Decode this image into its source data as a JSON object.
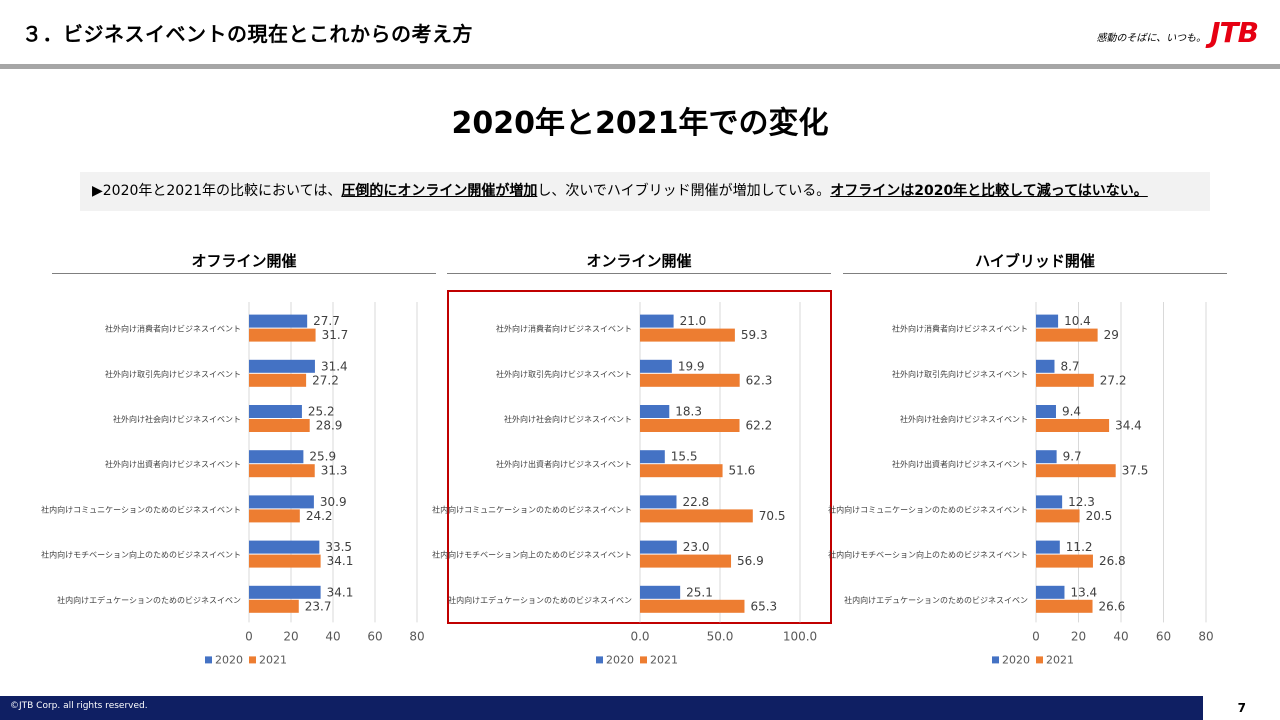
{
  "header": {
    "title": "３．ビジネスイベントの現在とこれからの考え方",
    "tagline": "感動のそばに、いつも。",
    "logo_text": "JTB"
  },
  "slide_title": "2020年と2021年での変化",
  "summary": {
    "prefix": "▶2020年と2021年の比較においては、",
    "emphasis1": "圧倒的にオンライン開催が増加",
    "middle": "し、次いでハイブリッド開催が増加している。",
    "emphasis2": "オフラインは2020年と比較して減ってはいない。"
  },
  "colors": {
    "series_2020": "#4472c4",
    "series_2021": "#ed7d31",
    "highlight": "#c00000"
  },
  "chart_data": [
    {
      "type": "bar",
      "orientation": "horizontal",
      "title": "オフライン開催",
      "categories": [
        "社外向け消費者向けビジネスイベント",
        "社外向け取引先向けビジネスイベント",
        "社外向け社会向けビジネスイベント",
        "社外向け出資者向けビジネスイベント",
        "社内向けコミュニケーションのためのビジネスイベント",
        "社内向けモチベーション向上のためのビジネスイベント",
        "社内向けエデュケーションのためのビジネスイベン"
      ],
      "series": [
        {
          "name": "2020",
          "values": [
            27.7,
            31.4,
            25.2,
            25.9,
            30.9,
            33.5,
            34.1
          ]
        },
        {
          "name": "2021",
          "values": [
            31.7,
            27.2,
            28.9,
            31.3,
            24.2,
            34.1,
            23.7
          ]
        }
      ],
      "labels": {
        "2020": [
          "27.7",
          "31.4",
          "25.2",
          "25.9",
          "30.9",
          "33.5",
          "34.1"
        ],
        "2021": [
          "31.7",
          "27.2",
          "28.9",
          "31.3",
          "24.2",
          "34.1",
          "23.7"
        ]
      },
      "xlim": [
        0,
        80
      ],
      "xticks": [
        "0",
        "20",
        "40",
        "60",
        "80"
      ],
      "grid": true,
      "legend": "bottom"
    },
    {
      "type": "bar",
      "orientation": "horizontal",
      "title": "オンライン開催",
      "categories": [
        "社外向け消費者向けビジネスイベント",
        "社外向け取引先向けビジネスイベント",
        "社外向け社会向けビジネスイベント",
        "社外向け出資者向けビジネスイベント",
        "社内向けコミュニケーションのためのビジネスイベント",
        "社内向けモチベーション向上のためのビジネスイベント",
        "社内向けエデュケーションのためのビジネスイベン"
      ],
      "series": [
        {
          "name": "2020",
          "values": [
            21.0,
            19.9,
            18.3,
            15.5,
            22.8,
            23.0,
            25.1
          ]
        },
        {
          "name": "2021",
          "values": [
            59.3,
            62.3,
            62.2,
            51.6,
            70.5,
            56.9,
            65.3
          ]
        }
      ],
      "labels": {
        "2020": [
          "21.0",
          "19.9",
          "18.3",
          "15.5",
          "22.8",
          "23.0",
          "25.1"
        ],
        "2021": [
          "59.3",
          "62.3",
          "62.2",
          "51.6",
          "70.5",
          "56.9",
          "65.3"
        ]
      },
      "xlim": [
        0,
        100
      ],
      "xticks": [
        "0.0",
        "50.0",
        "100.0"
      ],
      "grid": true,
      "legend": "bottom"
    },
    {
      "type": "bar",
      "orientation": "horizontal",
      "title": "ハイブリッド開催",
      "categories": [
        "社外向け消費者向けビジネスイベント",
        "社外向け取引先向けビジネスイベント",
        "社外向け社会向けビジネスイベント",
        "社外向け出資者向けビジネスイベント",
        "社内向けコミュニケーションのためのビジネスイベント",
        "社内向けモチベーション向上のためのビジネスイベント",
        "社内向けエデュケーションのためのビジネスイベン"
      ],
      "series": [
        {
          "name": "2020",
          "values": [
            10.4,
            8.7,
            9.4,
            9.7,
            12.3,
            11.2,
            13.4
          ]
        },
        {
          "name": "2021",
          "values": [
            29,
            27.2,
            34.4,
            37.5,
            20.5,
            26.8,
            26.6
          ]
        }
      ],
      "labels": {
        "2020": [
          "10.4",
          "8.7",
          "9.4",
          "9.7",
          "12.3",
          "11.2",
          "13.4"
        ],
        "2021": [
          "29",
          "27.2",
          "34.4",
          "37.5",
          "20.5",
          "26.8",
          "26.6"
        ]
      },
      "xlim": [
        0,
        80
      ],
      "xticks": [
        "0",
        "20",
        "40",
        "60",
        "80"
      ],
      "grid": true,
      "legend": "bottom"
    }
  ],
  "footer": {
    "copyright": "©JTB Corp. all rights reserved.",
    "page": "7"
  }
}
